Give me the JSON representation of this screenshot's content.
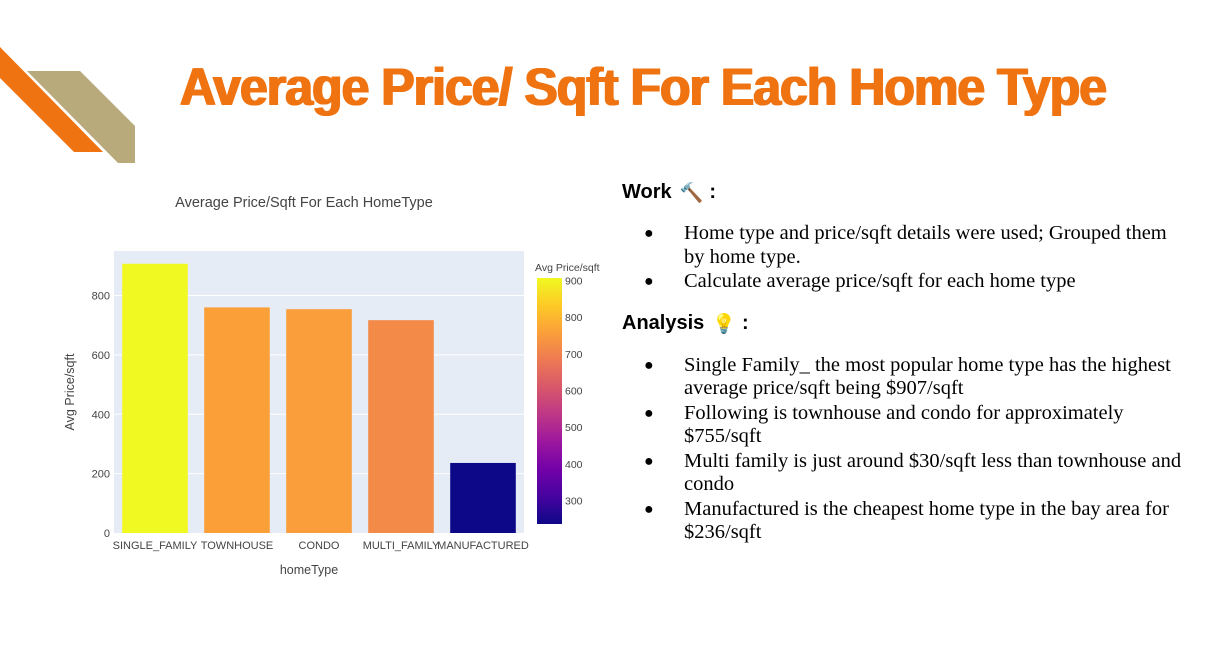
{
  "slide": {
    "title": "Average Price/ Sqft For Each Home Type"
  },
  "colors": {
    "accent_orange": "#ef7310",
    "accent_tan": "#b8aa7a"
  },
  "work": {
    "heading": "Work",
    "icon": "hammer-icon",
    "colon": ":",
    "bullets": [
      "Home type and price/sqft details were used; Grouped them by home type.",
      "Calculate average price/sqft for each home type"
    ]
  },
  "analysis": {
    "heading": "Analysis",
    "icon": "lightbulb-icon",
    "colon": ":",
    "bullets": [
      "Single Family_ the most popular home type has the highest average price/sqft being $907/sqft",
      "Following is townhouse and condo for approximately $755/sqft",
      "Multi family is just around $30/sqft less than townhouse and condo",
      "Manufactured is the cheapest home type in the bay area for $236/sqft"
    ]
  },
  "chart_data": {
    "type": "bar",
    "title": "Average Price/Sqft For Each HomeType",
    "xlabel": "homeType",
    "ylabel": "Avg Price/sqft",
    "categories": [
      "SINGLE_FAMILY",
      "TOWNHOUSE",
      "CONDO",
      "MULTI_FAMILY",
      "MANUFACTURED"
    ],
    "values": [
      907,
      760,
      754,
      717,
      236
    ],
    "ylim": [
      0,
      950
    ],
    "yticks": [
      0,
      200,
      400,
      600,
      800
    ],
    "grid": true,
    "colorbar": {
      "title": "Avg Price/sqft",
      "range": [
        236,
        907
      ],
      "ticks": [
        300,
        400,
        500,
        600,
        700,
        800,
        900
      ],
      "colorscale": [
        "#0d0887",
        "#46039f",
        "#7201a8",
        "#9c179e",
        "#bd3786",
        "#d8576b",
        "#ed7953",
        "#fb9f3a",
        "#fdca26",
        "#f0f921"
      ]
    }
  }
}
